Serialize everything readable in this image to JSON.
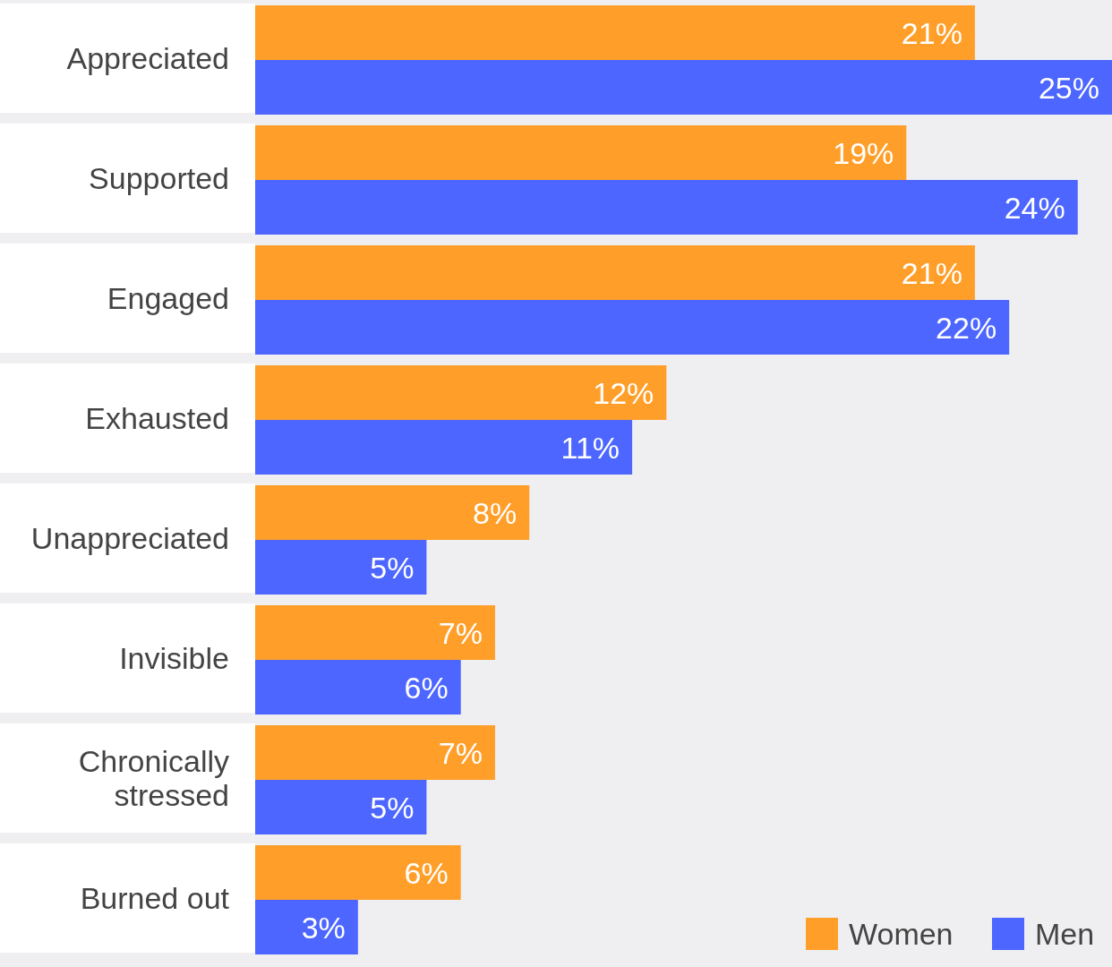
{
  "chart_data": {
    "type": "bar",
    "orientation": "horizontal",
    "categories": [
      "Appreciated",
      "Supported",
      "Engaged",
      "Exhausted",
      "Unappreciated",
      "Invisible",
      "Chronically stressed",
      "Burned out"
    ],
    "series": [
      {
        "name": "Women",
        "color": "#ff9f29",
        "values": [
          21,
          19,
          21,
          12,
          8,
          7,
          7,
          6
        ],
        "value_labels": [
          "21%",
          "19%",
          "21%",
          "12%",
          "8%",
          "7%",
          "7%",
          "6%"
        ]
      },
      {
        "name": "Men",
        "color": "#4c66ff",
        "values": [
          25,
          24,
          22,
          11,
          5,
          6,
          5,
          3
        ],
        "value_labels": [
          "25%",
          "24%",
          "22%",
          "11%",
          "5%",
          "6%",
          "5%",
          "3%"
        ]
      }
    ],
    "xlim": [
      0,
      25
    ],
    "legend": "bottom right",
    "grid": false
  }
}
